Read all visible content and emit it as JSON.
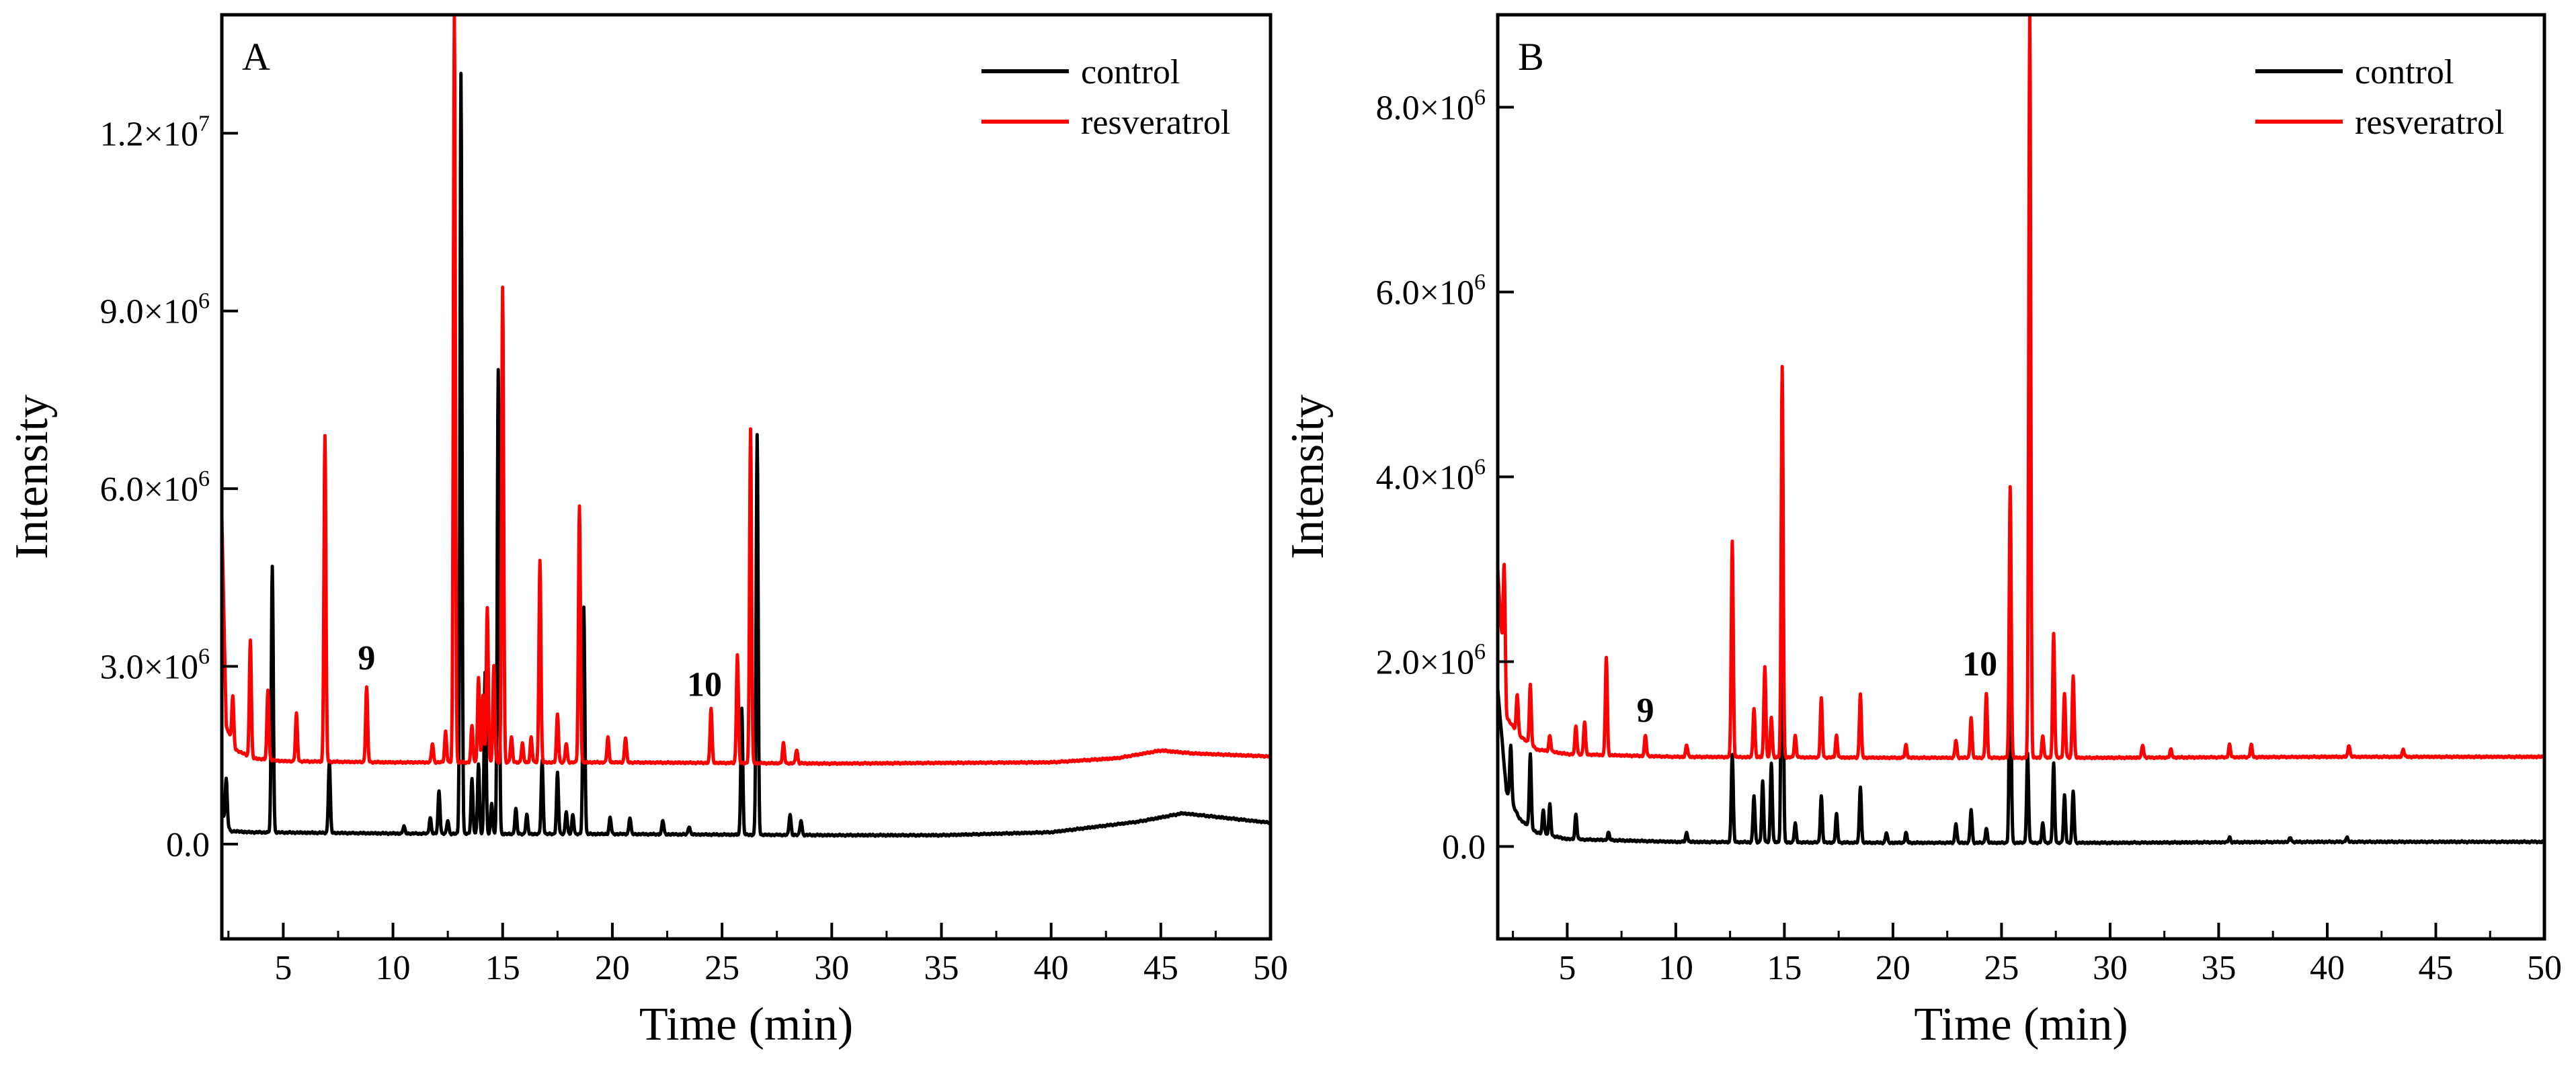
{
  "chart_data": [
    {
      "type": "line",
      "panel_label": "A",
      "xlabel": "Time (min)",
      "ylabel": "Intensity",
      "xlim": [
        2.2,
        50
      ],
      "ylim": [
        -1600000,
        14000000
      ],
      "x_ticks": [
        5,
        10,
        15,
        20,
        25,
        30,
        35,
        40,
        45,
        50
      ],
      "y_ticks": [
        {
          "value": 0,
          "mantissa": "0.0",
          "exp": ""
        },
        {
          "value": 3000000,
          "mantissa": "3.0×10",
          "exp": "6"
        },
        {
          "value": 6000000,
          "mantissa": "6.0×10",
          "exp": "6"
        },
        {
          "value": 9000000,
          "mantissa": "9.0×10",
          "exp": "6"
        },
        {
          "value": 12000000,
          "mantissa": "1.2×10",
          "exp": "7"
        }
      ],
      "legend": [
        "control",
        "resveratrol"
      ],
      "legend_position": "top-right",
      "annotations": [
        {
          "text": "9",
          "x": 8.8,
          "y": 2950000
        },
        {
          "text": "10",
          "x": 24.2,
          "y": 2500000
        }
      ],
      "series": [
        {
          "name": "control",
          "color": "#000000",
          "baseline": [
            [
              2.2,
              500000
            ],
            [
              2.6,
              220000
            ],
            [
              3.5,
              200000
            ],
            [
              10,
              180000
            ],
            [
              15,
              170000
            ],
            [
              20,
              170000
            ],
            [
              25,
              160000
            ],
            [
              30,
              150000
            ],
            [
              35,
              150000
            ],
            [
              40,
              200000
            ],
            [
              44,
              380000
            ],
            [
              46,
              520000
            ],
            [
              47.5,
              460000
            ],
            [
              50,
              360000
            ]
          ],
          "peaks": [
            [
              2.4,
              1100000
            ],
            [
              4.5,
              4700000
            ],
            [
              7.1,
              1400000
            ],
            [
              10.5,
              300000
            ],
            [
              11.7,
              450000
            ],
            [
              12.1,
              900000
            ],
            [
              12.5,
              400000
            ],
            [
              13.1,
              13000000
            ],
            [
              13.6,
              1100000
            ],
            [
              13.9,
              1350000
            ],
            [
              14.2,
              2900000
            ],
            [
              14.5,
              700000
            ],
            [
              14.8,
              8000000
            ],
            [
              15.6,
              600000
            ],
            [
              16.1,
              500000
            ],
            [
              16.8,
              1400000
            ],
            [
              17.5,
              1200000
            ],
            [
              17.9,
              550000
            ],
            [
              18.2,
              500000
            ],
            [
              18.7,
              4000000
            ],
            [
              19.9,
              450000
            ],
            [
              20.8,
              450000
            ],
            [
              22.3,
              400000
            ],
            [
              23.5,
              300000
            ],
            [
              25.9,
              2300000
            ],
            [
              26.6,
              6900000
            ],
            [
              28.1,
              500000
            ],
            [
              28.6,
              400000
            ]
          ]
        },
        {
          "name": "resveratrol",
          "color": "#ff0000",
          "baseline": [
            [
              2.2,
              5500000
            ],
            [
              2.4,
              2000000
            ],
            [
              2.8,
              1600000
            ],
            [
              3.6,
              1450000
            ],
            [
              5,
              1400000
            ],
            [
              10,
              1380000
            ],
            [
              20,
              1380000
            ],
            [
              30,
              1360000
            ],
            [
              40,
              1380000
            ],
            [
              43,
              1450000
            ],
            [
              45,
              1580000
            ],
            [
              46.5,
              1530000
            ],
            [
              50,
              1480000
            ]
          ],
          "peaks": [
            [
              2.7,
              2500000
            ],
            [
              3.5,
              3450000
            ],
            [
              4.3,
              2600000
            ],
            [
              5.6,
              2200000
            ],
            [
              6.9,
              6900000
            ],
            [
              8.8,
              2650000
            ],
            [
              11.8,
              1700000
            ],
            [
              12.4,
              1900000
            ],
            [
              12.8,
              14000000
            ],
            [
              13.6,
              2000000
            ],
            [
              13.9,
              2800000
            ],
            [
              14.1,
              2500000
            ],
            [
              14.3,
              4000000
            ],
            [
              14.6,
              3000000
            ],
            [
              15,
              9400000
            ],
            [
              15.4,
              1800000
            ],
            [
              15.9,
              1700000
            ],
            [
              16.3,
              1800000
            ],
            [
              16.7,
              4800000
            ],
            [
              17.5,
              2200000
            ],
            [
              17.9,
              1700000
            ],
            [
              18.5,
              5700000
            ],
            [
              19.8,
              1800000
            ],
            [
              20.6,
              1800000
            ],
            [
              24.5,
              2300000
            ],
            [
              25.7,
              3200000
            ],
            [
              26.3,
              7000000
            ],
            [
              27.8,
              1700000
            ],
            [
              28.4,
              1600000
            ]
          ]
        }
      ]
    },
    {
      "type": "line",
      "panel_label": "B",
      "xlabel": "Time (min)",
      "ylabel": "Intensity",
      "xlim": [
        1.8,
        50
      ],
      "ylim": [
        -1000000,
        9000000
      ],
      "x_ticks": [
        5,
        10,
        15,
        20,
        25,
        30,
        35,
        40,
        45,
        50
      ],
      "y_ticks": [
        {
          "value": 0,
          "mantissa": "0.0",
          "exp": ""
        },
        {
          "value": 2000000,
          "mantissa": "2.0×10",
          "exp": "6"
        },
        {
          "value": 4000000,
          "mantissa": "4.0×10",
          "exp": "6"
        },
        {
          "value": 6000000,
          "mantissa": "6.0×10",
          "exp": "6"
        },
        {
          "value": 8000000,
          "mantissa": "8.0×10",
          "exp": "6"
        }
      ],
      "legend": [
        "control",
        "resveratrol"
      ],
      "legend_position": "top-right",
      "annotations": [
        {
          "text": "9",
          "x": 8.6,
          "y": 1350000
        },
        {
          "text": "10",
          "x": 24.0,
          "y": 1850000
        }
      ],
      "series": [
        {
          "name": "control",
          "color": "#000000",
          "baseline": [
            [
              1.8,
              1700000
            ],
            [
              2.2,
              600000
            ],
            [
              2.8,
              300000
            ],
            [
              3.6,
              150000
            ],
            [
              5,
              80000
            ],
            [
              10,
              50000
            ],
            [
              20,
              40000
            ],
            [
              30,
              40000
            ],
            [
              40,
              50000
            ],
            [
              50,
              50000
            ]
          ],
          "peaks": [
            [
              2.4,
              1100000
            ],
            [
              3.3,
              1000000
            ],
            [
              3.9,
              400000
            ],
            [
              4.2,
              450000
            ],
            [
              5.4,
              350000
            ],
            [
              6.9,
              150000
            ],
            [
              10.5,
              150000
            ],
            [
              12.6,
              1000000
            ],
            [
              13.6,
              550000
            ],
            [
              14,
              700000
            ],
            [
              14.4,
              900000
            ],
            [
              14.9,
              4300000
            ],
            [
              15.5,
              250000
            ],
            [
              16.7,
              550000
            ],
            [
              17.4,
              350000
            ],
            [
              18.5,
              650000
            ],
            [
              19.7,
              150000
            ],
            [
              20.6,
              150000
            ],
            [
              22.9,
              250000
            ],
            [
              23.6,
              400000
            ],
            [
              24.3,
              200000
            ],
            [
              25.4,
              2500000
            ],
            [
              26.2,
              1000000
            ],
            [
              26.9,
              250000
            ],
            [
              27.4,
              900000
            ],
            [
              27.9,
              550000
            ],
            [
              28.3,
              600000
            ],
            [
              35.5,
              100000
            ],
            [
              38.3,
              100000
            ],
            [
              40.9,
              100000
            ]
          ]
        },
        {
          "name": "resveratrol",
          "color": "#ff0000",
          "baseline": [
            [
              1.8,
              3000000
            ],
            [
              2.2,
              1400000
            ],
            [
              2.8,
              1200000
            ],
            [
              3.6,
              1050000
            ],
            [
              5,
              1000000
            ],
            [
              10,
              970000
            ],
            [
              20,
              960000
            ],
            [
              30,
              960000
            ],
            [
              40,
              970000
            ],
            [
              50,
              970000
            ]
          ],
          "peaks": [
            [
              2.1,
              3050000
            ],
            [
              2.7,
              1650000
            ],
            [
              3.3,
              1750000
            ],
            [
              4.2,
              1200000
            ],
            [
              5.4,
              1300000
            ],
            [
              5.8,
              1350000
            ],
            [
              6.8,
              2050000
            ],
            [
              8.6,
              1200000
            ],
            [
              10.5,
              1100000
            ],
            [
              12.6,
              3300000
            ],
            [
              13.6,
              1500000
            ],
            [
              14.1,
              1950000
            ],
            [
              14.4,
              1400000
            ],
            [
              14.9,
              5200000
            ],
            [
              15.5,
              1200000
            ],
            [
              16.7,
              1600000
            ],
            [
              17.4,
              1200000
            ],
            [
              18.5,
              1650000
            ],
            [
              20.6,
              1100000
            ],
            [
              22.9,
              1150000
            ],
            [
              23.6,
              1400000
            ],
            [
              24.3,
              1650000
            ],
            [
              25.4,
              3900000
            ],
            [
              26.3,
              9000000
            ],
            [
              26.9,
              1200000
            ],
            [
              27.4,
              2300000
            ],
            [
              27.9,
              1650000
            ],
            [
              28.3,
              1850000
            ],
            [
              31.5,
              1100000
            ],
            [
              32.8,
              1050000
            ],
            [
              35.5,
              1100000
            ],
            [
              36.5,
              1100000
            ],
            [
              41,
              1100000
            ],
            [
              43.5,
              1050000
            ]
          ]
        }
      ]
    }
  ]
}
